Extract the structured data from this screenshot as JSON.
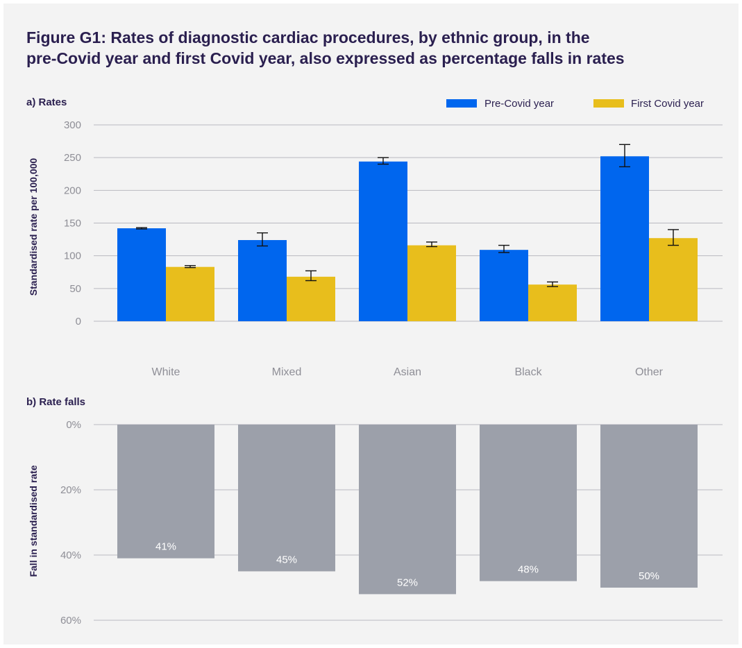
{
  "figure": {
    "title_line1": "Figure G1: Rates of diagnostic cardiac procedures, by ethnic group, in the",
    "title_line2": "pre-Covid year and first Covid year, also expressed as percentage falls in rates"
  },
  "colors": {
    "pre_covid": "#0066ee",
    "first_covid": "#e8be1c",
    "fall_bar": "#9ca0aa",
    "text_dark": "#2a1f4f",
    "text_axis": "#8e8e96",
    "gridline": "#b8b8c0"
  },
  "chart_data": [
    {
      "type": "bar",
      "panel_label": "a) Rates",
      "ylabel": "Standardised rate per 100,000",
      "ylim": [
        0,
        300
      ],
      "yticks": [
        "0",
        "50",
        "100",
        "150",
        "200",
        "250",
        "300"
      ],
      "categories": [
        "White",
        "Mixed",
        "Asian",
        "Black",
        "Other"
      ],
      "legend_position": "top-right",
      "grid": true,
      "series": [
        {
          "name": "Pre-Covid year",
          "values": [
            142,
            124,
            244,
            109,
            252
          ],
          "error_low": [
            141,
            115,
            240,
            105,
            236
          ],
          "error_high": [
            143,
            135,
            250,
            116,
            270
          ]
        },
        {
          "name": "First Covid year",
          "values": [
            83,
            68,
            116,
            56,
            127
          ],
          "error_low": [
            82,
            62,
            114,
            53,
            116
          ],
          "error_high": [
            85,
            77,
            121,
            60,
            140
          ]
        }
      ]
    },
    {
      "type": "bar",
      "panel_label": "b) Rate falls",
      "ylabel": "Fall in standardised rate",
      "ylim": [
        0,
        60
      ],
      "y_inverted": true,
      "yticks": [
        "0%",
        "20%",
        "40%",
        "60%"
      ],
      "categories": [
        "White",
        "Mixed",
        "Asian",
        "Black",
        "Other"
      ],
      "grid": true,
      "values": [
        41,
        45,
        52,
        48,
        50
      ],
      "data_labels": [
        "41%",
        "45%",
        "52%",
        "48%",
        "50%"
      ]
    }
  ]
}
